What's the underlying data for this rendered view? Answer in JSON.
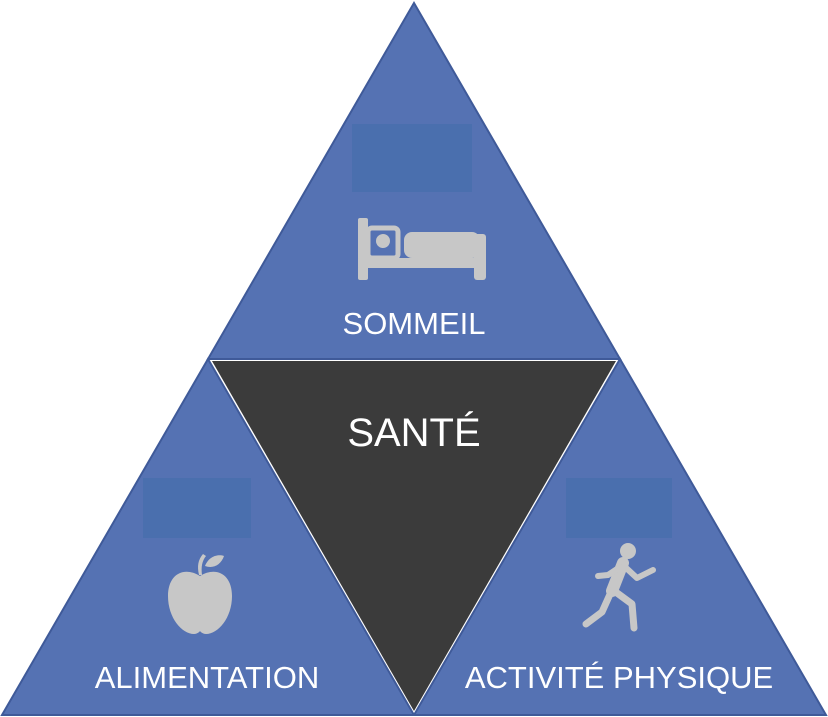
{
  "colors": {
    "triangle_fill": "#5572b3",
    "triangle_stroke": "#3f5a99",
    "center_fill": "#3b3b3b",
    "placeholder_box": "#4a6fae",
    "icon_fill": "#c7c7c7",
    "text": "#ffffff"
  },
  "center": {
    "label": "SANTÉ"
  },
  "sections": {
    "top": {
      "label": "SOMMEIL",
      "icon": "bed-icon"
    },
    "left": {
      "label": "ALIMENTATION",
      "icon": "apple-icon"
    },
    "right": {
      "label": "ACTIVITÉ PHYSIQUE",
      "icon": "runner-icon"
    }
  }
}
